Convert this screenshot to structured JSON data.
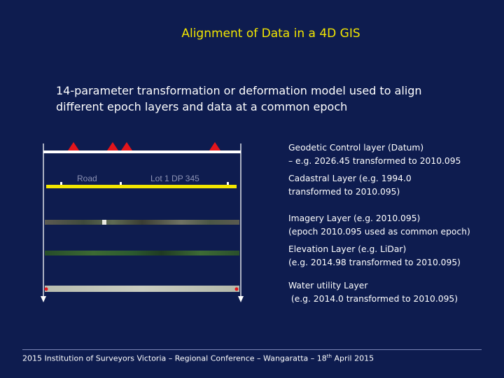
{
  "slide": {
    "title": "Alignment of Data in a 4D GIS",
    "subtitle": "14-parameter transformation or deformation model used to align different epoch layers and data at a common epoch"
  },
  "diagram": {
    "road_label": "Road",
    "lot_label": "Lot 1 DP 345",
    "colors": {
      "background": "#0e1c4f",
      "title": "#f2e600",
      "cadastral_line": "#f2e600",
      "control_marker": "#e3151b",
      "geodetic_line": "#ffffff"
    }
  },
  "layers": [
    {
      "line1": "Geodetic Control layer (Datum)",
      "line2": "– e.g. 2026.45 transformed to 2010.095"
    },
    {
      "line1": "Cadastral Layer (e.g. 1994.0",
      "line2": "transformed to 2010.095)"
    },
    {
      "line1": "Imagery Layer (e.g. 2010.095)",
      "line2": "(epoch 2010.095 used as common epoch)"
    },
    {
      "line1": "Elevation Layer (e.g. LiDar)",
      "line2": "(e.g. 2014.98 transformed to 2010.095)"
    },
    {
      "line1": "Water utility Layer",
      "line2": " (e.g. 2014.0 transformed to 2010.095)"
    }
  ],
  "footer": {
    "text_before": "2015 Institution of Surveyors Victoria – Regional Conference – Wangaratta – 18",
    "superscript": "th",
    "text_after": " April 2015"
  }
}
